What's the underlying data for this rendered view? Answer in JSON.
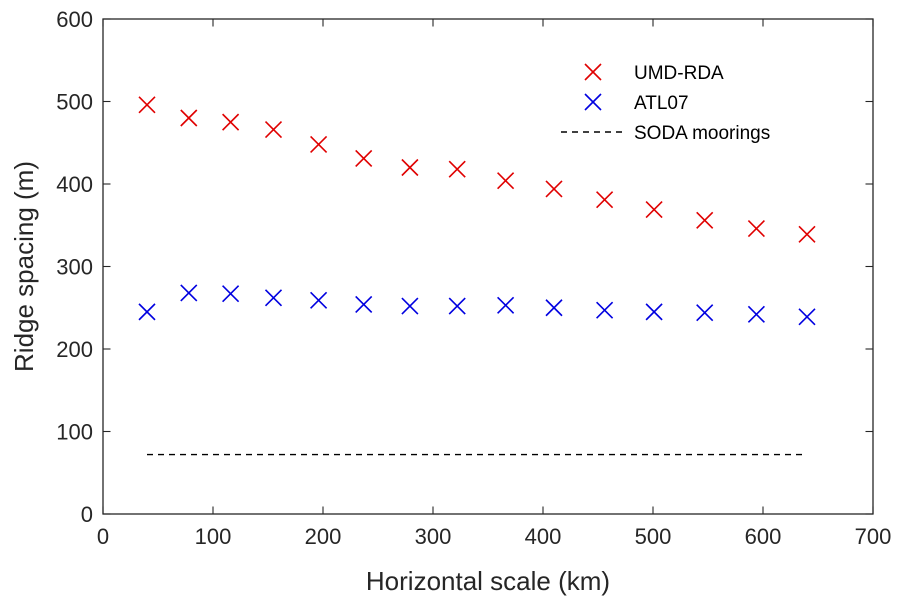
{
  "chart_data": {
    "type": "scatter",
    "title": "",
    "xlabel": "Horizontal scale (km)",
    "ylabel": "Ridge spacing (m)",
    "xlim": [
      0,
      700
    ],
    "ylim": [
      0,
      600
    ],
    "xticks": [
      0,
      100,
      200,
      300,
      400,
      500,
      600,
      700
    ],
    "yticks": [
      0,
      100,
      200,
      300,
      400,
      500,
      600
    ],
    "grid": false,
    "legend_position": "top-right",
    "series": [
      {
        "name": "UMD-RDA",
        "marker": "x",
        "color": "#e00000",
        "x": [
          40,
          78,
          116,
          155,
          196,
          237,
          279,
          322,
          366,
          410,
          456,
          501,
          547,
          594,
          640
        ],
        "y": [
          496,
          480,
          475,
          466,
          448,
          431,
          420,
          418,
          404,
          394,
          381,
          369,
          356,
          346,
          339
        ]
      },
      {
        "name": "ATL07",
        "marker": "x",
        "color": "#0000e0",
        "x": [
          40,
          78,
          116,
          155,
          196,
          237,
          279,
          322,
          366,
          410,
          456,
          501,
          547,
          594,
          640
        ],
        "y": [
          245,
          268,
          267,
          262,
          259,
          254,
          252,
          252,
          253,
          250,
          247,
          245,
          244,
          242,
          239
        ]
      },
      {
        "name": "SODA moorings",
        "marker": "dashed-line",
        "color": "#000000",
        "x": [
          40,
          640
        ],
        "y": [
          72,
          72
        ]
      }
    ]
  }
}
